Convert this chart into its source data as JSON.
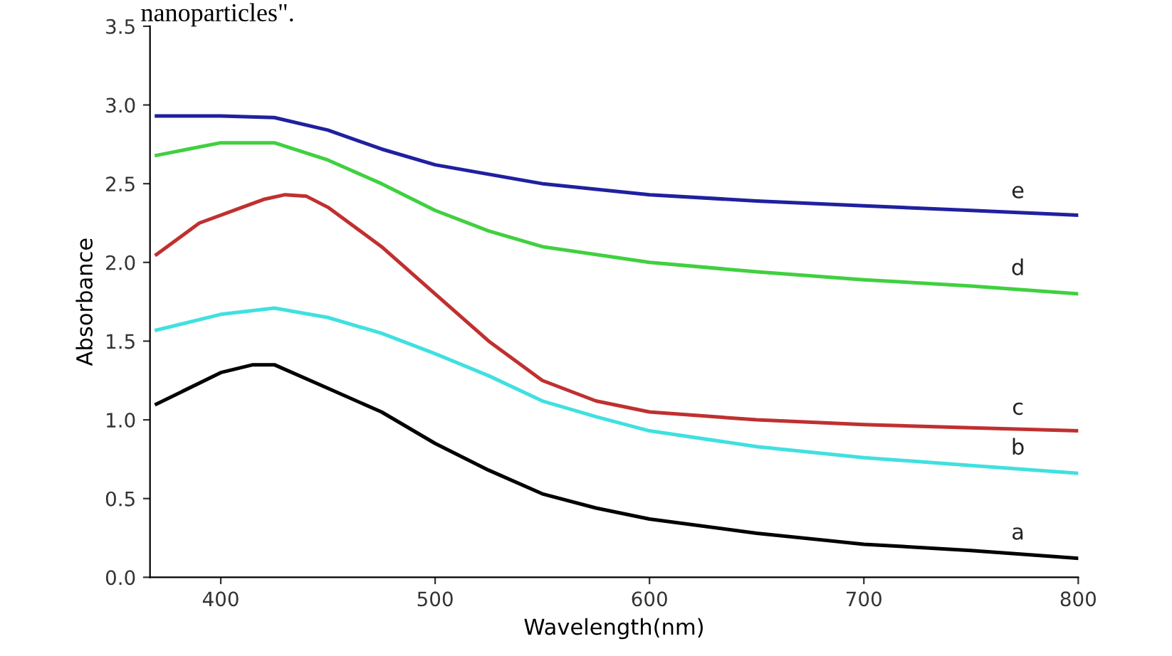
{
  "chart_data": {
    "type": "line",
    "annotations": [
      "nanoparticles\"."
    ],
    "xlabel": "Wavelength(nm)",
    "ylabel": "Absorbance",
    "xlim": [
      367,
      800
    ],
    "ylim": [
      0,
      3.5
    ],
    "xticks": [
      400,
      500,
      600,
      700,
      800
    ],
    "yticks": [
      {
        "value": 0,
        "label": "0.0"
      },
      {
        "value": 0.5,
        "label": "0.5"
      },
      {
        "value": 1,
        "label": "1.0"
      },
      {
        "value": 1.5,
        "label": "1.5"
      },
      {
        "value": 2,
        "label": "2.0"
      },
      {
        "value": 2.5,
        "label": "2.5"
      },
      {
        "value": 3,
        "label": "3.0"
      },
      {
        "value": 3.5,
        "label": "3.5"
      }
    ],
    "grid": false,
    "legend": false,
    "marker": "none",
    "line_style": "solid",
    "series": [
      {
        "name": "a",
        "color": "#000000",
        "x": [
          370,
          400,
          415,
          425,
          450,
          475,
          500,
          525,
          550,
          575,
          600,
          650,
          700,
          750,
          800
        ],
        "values": [
          1.1,
          1.3,
          1.35,
          1.35,
          1.2,
          1.05,
          0.85,
          0.68,
          0.53,
          0.44,
          0.37,
          0.28,
          0.21,
          0.17,
          0.12
        ]
      },
      {
        "name": "b",
        "color": "#40e0e0",
        "x": [
          370,
          400,
          425,
          450,
          475,
          500,
          525,
          550,
          575,
          600,
          650,
          700,
          750,
          800
        ],
        "values": [
          1.57,
          1.67,
          1.71,
          1.65,
          1.55,
          1.42,
          1.28,
          1.12,
          1.02,
          0.93,
          0.83,
          0.76,
          0.71,
          0.66
        ]
      },
      {
        "name": "c",
        "color": "#c03030",
        "x": [
          370,
          390,
          410,
          420,
          430,
          440,
          450,
          475,
          500,
          525,
          550,
          575,
          600,
          650,
          700,
          750,
          800
        ],
        "values": [
          2.05,
          2.25,
          2.35,
          2.4,
          2.43,
          2.42,
          2.35,
          2.1,
          1.8,
          1.5,
          1.25,
          1.12,
          1.05,
          1.0,
          0.97,
          0.95,
          0.93
        ]
      },
      {
        "name": "d",
        "color": "#40d040",
        "x": [
          370,
          400,
          425,
          450,
          475,
          500,
          525,
          550,
          600,
          650,
          700,
          750,
          800
        ],
        "values": [
          2.68,
          2.76,
          2.76,
          2.65,
          2.5,
          2.33,
          2.2,
          2.1,
          2.0,
          1.94,
          1.89,
          1.85,
          1.8
        ]
      },
      {
        "name": "e",
        "color": "#2020a0",
        "x": [
          370,
          400,
          425,
          450,
          475,
          500,
          550,
          600,
          650,
          700,
          750,
          800
        ],
        "values": [
          2.93,
          2.93,
          2.92,
          2.84,
          2.72,
          2.62,
          2.5,
          2.43,
          2.39,
          2.36,
          2.33,
          2.3
        ]
      }
    ]
  }
}
